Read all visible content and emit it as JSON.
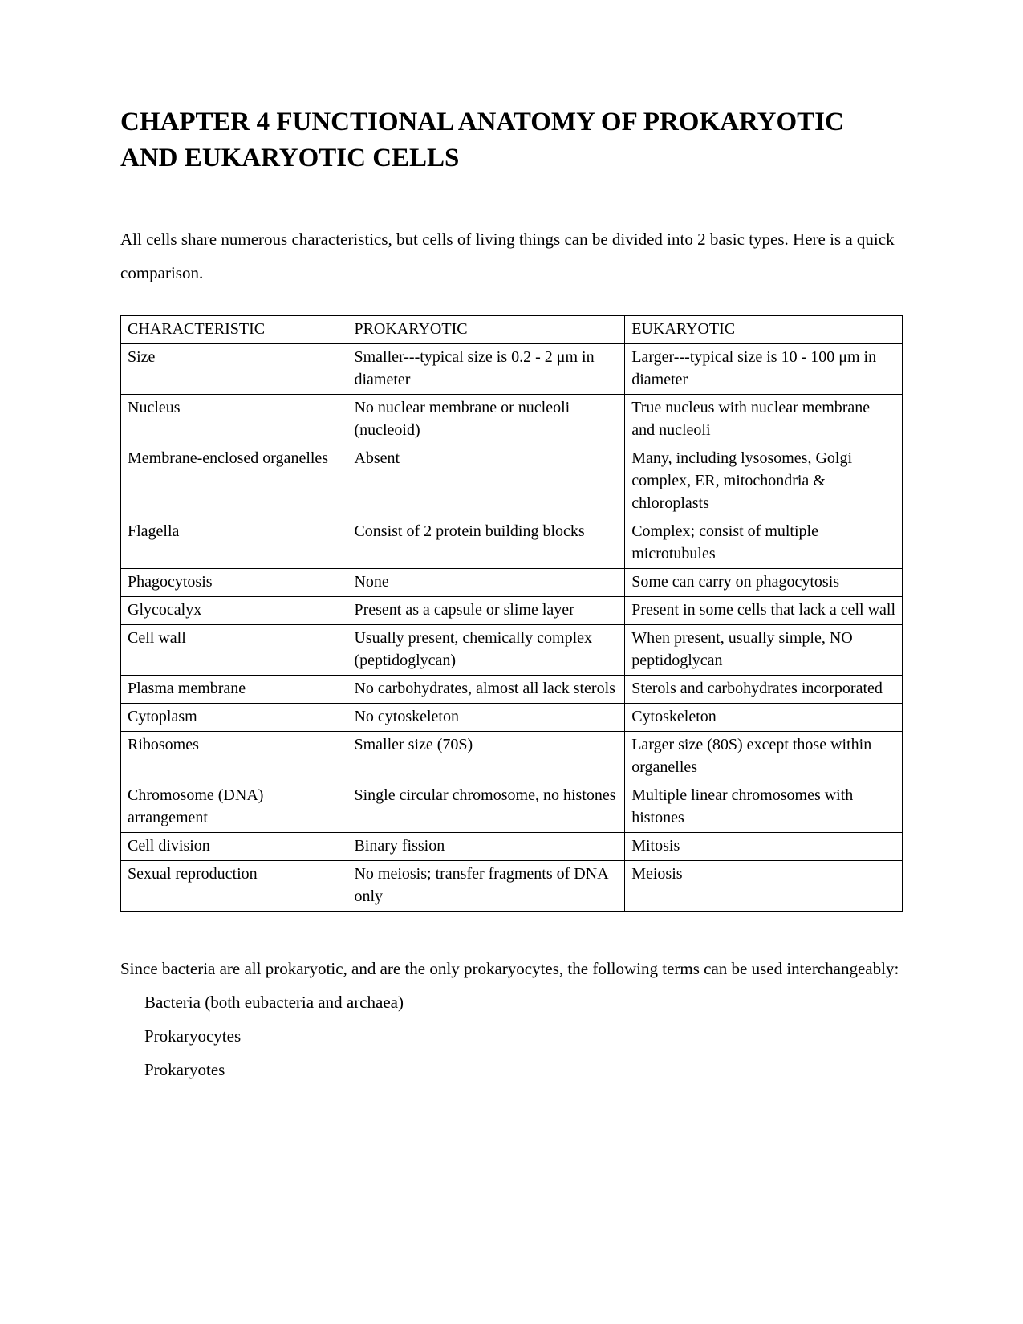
{
  "title": "CHAPTER  4  FUNCTIONAL ANATOMY OF PROKARYOTIC AND EUKARYOTIC CELLS",
  "intro": "All cells share numerous characteristics, but cells of living things can be divided into 2 basic types.  Here is a quick comparison.",
  "table": {
    "type": "table",
    "border_color": "#000000",
    "background_color": "#ffffff",
    "font_size_pt": 15,
    "column_widths_pct": [
      29,
      35.5,
      35.5
    ],
    "columns": [
      "CHARACTERISTIC",
      "PROKARYOTIC",
      "EUKARYOTIC"
    ],
    "rows": [
      [
        "Size",
        "Smaller---typical size is 0.2 - 2 μm in diameter",
        "Larger---typical size is 10 - 100 μm in diameter"
      ],
      [
        "Nucleus",
        "No nuclear membrane or nucleoli (nucleoid)",
        "True nucleus with nuclear membrane and nucleoli"
      ],
      [
        "Membrane-enclosed organelles",
        "Absent",
        "Many, including lysosomes, Golgi complex, ER, mitochondria & chloroplasts"
      ],
      [
        "Flagella",
        "Consist of 2 protein building blocks",
        "Complex; consist of multiple microtubules"
      ],
      [
        "Phagocytosis",
        "None",
        "Some can carry on phagocytosis"
      ],
      [
        "Glycocalyx",
        "Present as a capsule or slime layer",
        "Present in some cells that lack a cell wall"
      ],
      [
        "Cell wall",
        "Usually present, chemically complex (peptidoglycan)",
        "When present, usually simple, NO peptidoglycan"
      ],
      [
        "Plasma membrane",
        "No carbohydrates, almost all lack sterols",
        "Sterols and carbohydrates incorporated"
      ],
      [
        "Cytoplasm",
        "No cytoskeleton",
        "Cytoskeleton"
      ],
      [
        "Ribosomes",
        "Smaller size (70S)",
        "Larger size (80S) except those within organelles"
      ],
      [
        "Chromosome (DNA) arrangement",
        "Single circular chromosome, no histones",
        "Multiple linear chromosomes with histones"
      ],
      [
        "Cell division",
        "Binary fission",
        "Mitosis"
      ],
      [
        "Sexual reproduction",
        "No meiosis; transfer fragments of DNA only",
        "Meiosis"
      ]
    ]
  },
  "outro": "Since bacteria are all prokaryotic, and are the only prokaryocytes, the following terms can be used interchangeably:",
  "list_items": [
    "Bacteria (both eubacteria and archaea)",
    "Prokaryocytes",
    "Prokaryotes"
  ],
  "colors": {
    "text": "#000000",
    "background": "#ffffff",
    "table_border": "#000000"
  },
  "typography": {
    "title_fontsize_pt": 25,
    "body_fontsize_pt": 16,
    "font_family": "Palatino / Book Antiqua serif"
  }
}
